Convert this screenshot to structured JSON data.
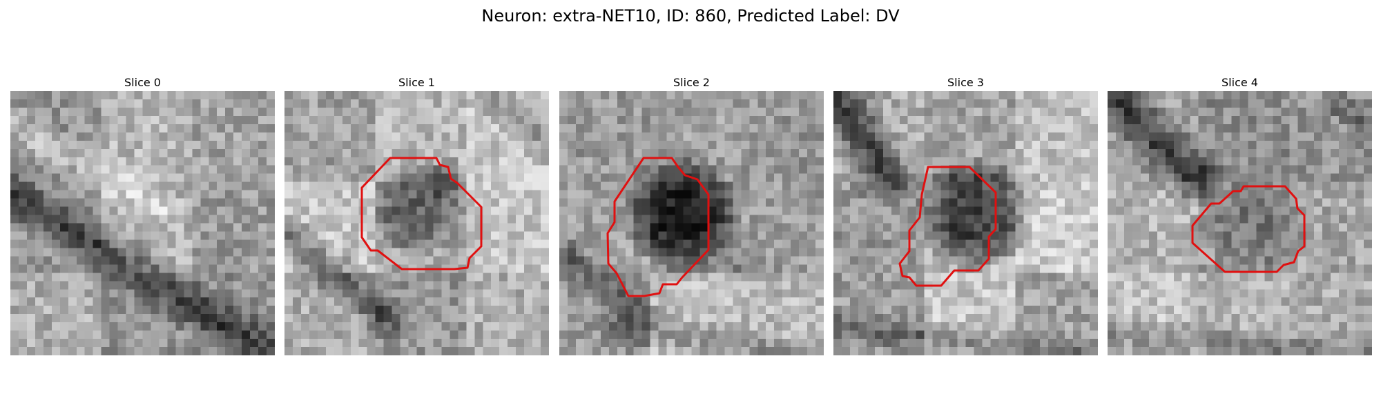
{
  "figure": {
    "title": "Neuron: extra-NET10, ID: 860, Predicted Label: DV"
  },
  "outline_color": "#e01010",
  "panels": [
    {
      "title": "Slice 0",
      "has_outline": false
    },
    {
      "title": "Slice 1",
      "has_outline": true
    },
    {
      "title": "Slice 2",
      "has_outline": true
    },
    {
      "title": "Slice 3",
      "has_outline": true
    },
    {
      "title": "Slice 4",
      "has_outline": true
    }
  ]
}
